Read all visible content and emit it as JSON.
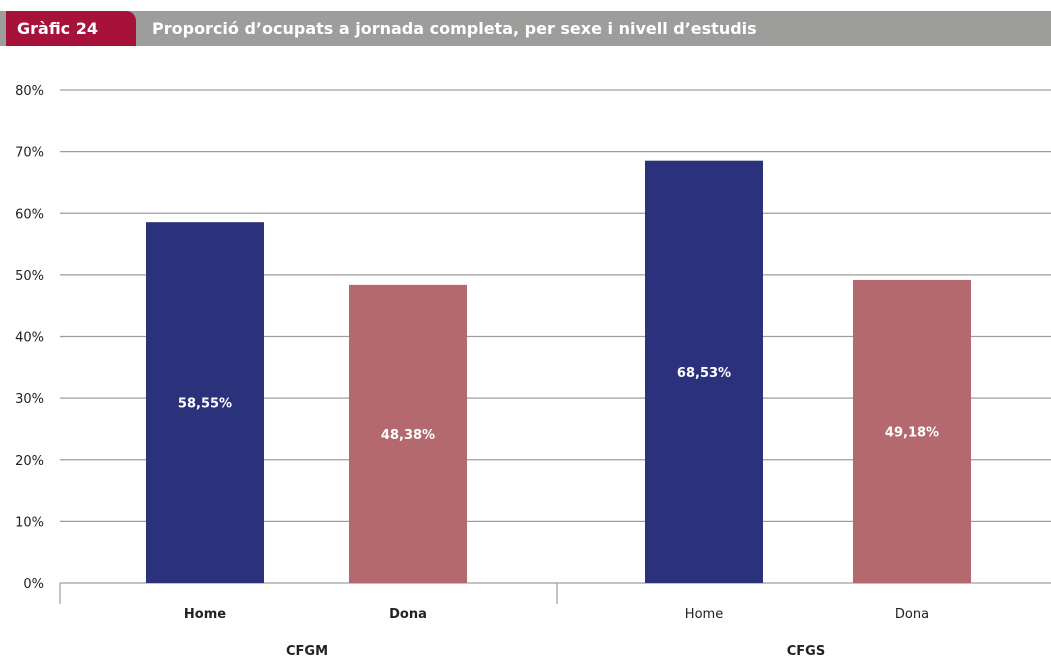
{
  "header": {
    "badge": "Gràfic 24",
    "title": "Proporció d’ocupats a jornada completa, per sexe i nivell d’estudis"
  },
  "colors": {
    "badge": "#a7123b",
    "header_bar": "#9d9d9c",
    "home": "#2b317a",
    "dona": "#b3696d",
    "grid": "#9d9d9c"
  },
  "chart_data": {
    "type": "bar",
    "title": "Proporció d’ocupats a jornada completa, per sexe i nivell d’estudis",
    "ylim": [
      0,
      80
    ],
    "grid": true,
    "yticks": [
      "0%",
      "10%",
      "20%",
      "30%",
      "40%",
      "50%",
      "60%",
      "70%",
      "80%"
    ],
    "groups": [
      {
        "name": "CFGM",
        "bars": [
          {
            "category": "Home",
            "value": 58.55,
            "label": "58,55%"
          },
          {
            "category": "Dona",
            "value": 48.38,
            "label": "48,38%"
          }
        ]
      },
      {
        "name": "CFGS",
        "bars": [
          {
            "category": "Home",
            "value": 68.53,
            "label": "68,53%"
          },
          {
            "category": "Dona",
            "value": 49.18,
            "label": "49,18%"
          }
        ]
      }
    ]
  }
}
